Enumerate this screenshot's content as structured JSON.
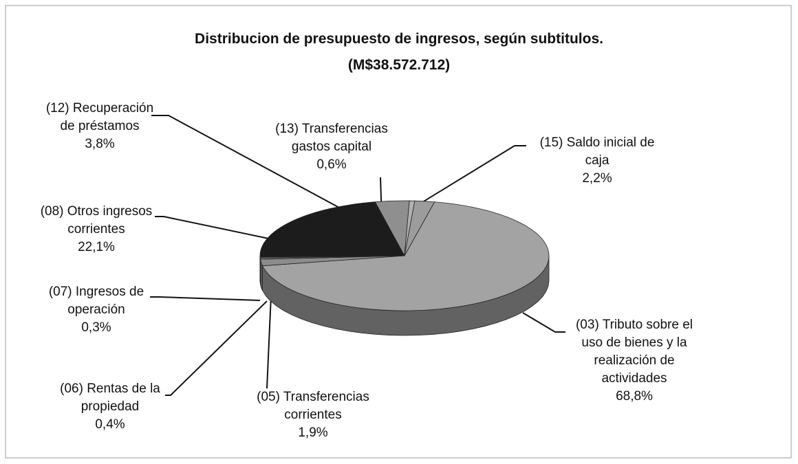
{
  "chart_data": {
    "type": "pie",
    "title": "Distribucion de presupuesto de ingresos, según subtitulos.",
    "subtitle": "(M$38.572.712)",
    "categories": [
      "(03) Tributo sobre el uso de bienes y la realización de actividades",
      "(05) Transferencias corrientes",
      "(06) Rentas de la propiedad",
      "(07) Ingresos de operación",
      "(08) Otros ingresos corrientes",
      "(12) Recuperación de préstamos",
      "(13) Transferencias gastos capital",
      "(15) Saldo inicial de caja"
    ],
    "values": [
      68.8,
      1.9,
      0.4,
      0.3,
      22.1,
      3.8,
      0.6,
      2.2
    ],
    "value_labels": [
      "68,8%",
      "1,9%",
      "0,4%",
      "0,3%",
      "22,1%",
      "3,8%",
      "0,6%",
      "2,2%"
    ],
    "colors": [
      "#a3a3a3",
      "#8c8c8c",
      "#7a7a7a",
      "#6a6a6a",
      "#1c1c1c",
      "#8f8f8f",
      "#b0b0b0",
      "#9c9c9c"
    ]
  }
}
